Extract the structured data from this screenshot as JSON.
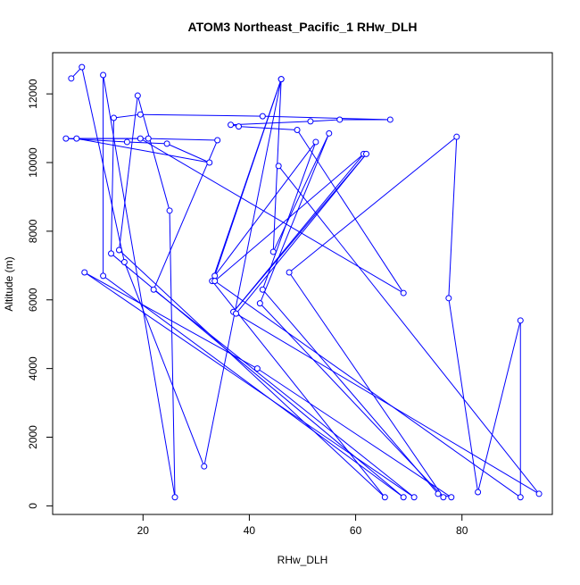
{
  "chart_data": {
    "type": "scatter",
    "title": "ATOM3 Northeast_Pacific_1 RHw_DLH",
    "xlabel": "RHw_DLH",
    "ylabel": "Altitude (m)",
    "xlim": [
      3.0,
      97.0
    ],
    "ylim": [
      -250,
      13200
    ],
    "xticks": [
      20,
      40,
      60,
      80
    ],
    "yticks": [
      0,
      2000,
      4000,
      6000,
      8000,
      10000,
      12000
    ],
    "grid": false,
    "legend": "none",
    "series_color": "#0000ff",
    "series": [
      {
        "points": [
          [
            6.5,
            12450
          ],
          [
            8.5,
            12780
          ],
          [
            16.5,
            7100
          ],
          [
            31.5,
            1150
          ],
          [
            46.0,
            12430
          ],
          [
            33.0,
            6550
          ],
          [
            65.5,
            250
          ],
          [
            15.5,
            7450
          ],
          [
            19.0,
            11950
          ],
          [
            25.0,
            8600
          ],
          [
            26.0,
            250
          ],
          [
            12.5,
            12550
          ],
          [
            12.5,
            6700
          ],
          [
            69.0,
            250
          ],
          [
            14.0,
            7350
          ],
          [
            14.5,
            11300
          ],
          [
            19.5,
            11400
          ],
          [
            42.5,
            11350
          ],
          [
            66.5,
            11250
          ],
          [
            57.0,
            11250
          ],
          [
            51.5,
            11200
          ],
          [
            36.5,
            11100
          ],
          [
            38.0,
            11050
          ],
          [
            49.0,
            10950
          ],
          [
            69.0,
            6200
          ],
          [
            19.5,
            10700
          ],
          [
            5.5,
            10700
          ],
          [
            17.0,
            10600
          ],
          [
            24.5,
            10550
          ],
          [
            32.5,
            10000
          ],
          [
            7.5,
            10700
          ],
          [
            21.0,
            10700
          ],
          [
            34.0,
            10650
          ],
          [
            22.0,
            6300
          ],
          [
            71.0,
            250
          ],
          [
            9.0,
            6800
          ],
          [
            41.5,
            4000
          ],
          [
            78.0,
            250
          ],
          [
            75.5,
            350
          ],
          [
            42.5,
            6300
          ],
          [
            52.5,
            10600
          ],
          [
            33.5,
            6700
          ],
          [
            46.0,
            12430
          ],
          [
            44.5,
            7400
          ],
          [
            55.0,
            10850
          ],
          [
            42.0,
            5900
          ],
          [
            76.5,
            250
          ],
          [
            47.5,
            6800
          ],
          [
            79.0,
            10750
          ],
          [
            77.5,
            6050
          ],
          [
            83.0,
            400
          ],
          [
            91.0,
            5400
          ],
          [
            91.0,
            250
          ],
          [
            33.5,
            6550
          ],
          [
            61.5,
            10250
          ],
          [
            37.0,
            5650
          ],
          [
            62.0,
            10250
          ],
          [
            37.5,
            5600
          ],
          [
            94.5,
            350
          ],
          [
            45.5,
            9900
          ]
        ]
      }
    ]
  }
}
